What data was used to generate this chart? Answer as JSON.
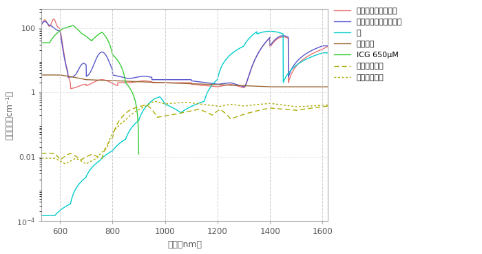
{
  "xlabel": "波長（nm）",
  "ylabel": "吸収係数（cm⁻¹）",
  "xlim": [
    530,
    1620
  ],
  "ylim": [
    0.0001,
    400
  ],
  "xticks": [
    600,
    800,
    1000,
    1200,
    1400,
    1600
  ],
  "bg_color": "#ffffff",
  "grid_color": "#cccccc",
  "legend": [
    "酔素化ヘモグロビン",
    "脱酔素化ヘモグロビン",
    "水",
    "皮膚組織",
    "ICG 650μM",
    "脂肪（ブタ）",
    "脂肪（ヒト）"
  ],
  "colors": {
    "oxyhemo": "#e87070",
    "deoxyhemo": "#5555cc",
    "water": "#00cccc",
    "skin": "#996633",
    "icg": "#33cc33",
    "fat_pig": "#aaaa00",
    "fat_human": "#aaaa00"
  }
}
